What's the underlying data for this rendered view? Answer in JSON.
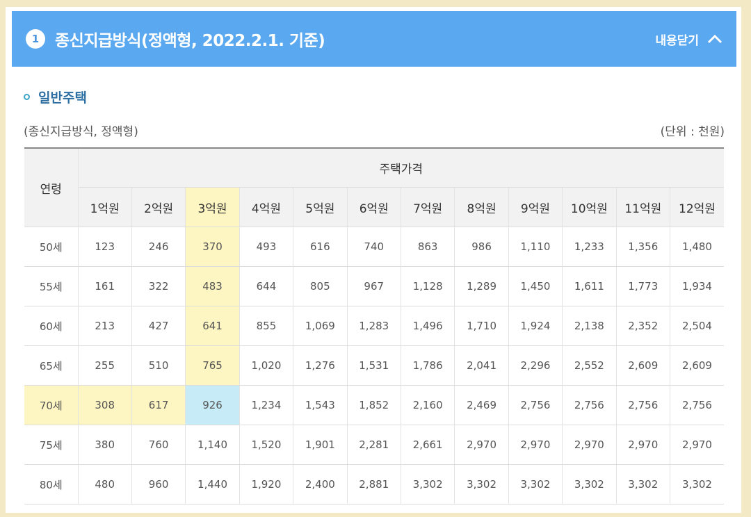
{
  "header": {
    "number": "1",
    "title": "종신지급방식(정액형, 2022.2.1. 기준)",
    "collapse_label": "내용닫기"
  },
  "section": {
    "title": "일반주택",
    "caption": "(종신지급방식, 정액형)",
    "unit": "(단위 : 천원)"
  },
  "table": {
    "age_header": "연령",
    "group_header": "주택가격",
    "price_headers": [
      "1억원",
      "2억원",
      "3억원",
      "4억원",
      "5억원",
      "6억원",
      "7억원",
      "8억원",
      "9억원",
      "10억원",
      "11억원",
      "12억원"
    ],
    "rows": [
      {
        "age": "50세",
        "values": [
          "123",
          "246",
          "370",
          "493",
          "616",
          "740",
          "863",
          "986",
          "1,110",
          "1,233",
          "1,356",
          "1,480"
        ]
      },
      {
        "age": "55세",
        "values": [
          "161",
          "322",
          "483",
          "644",
          "805",
          "967",
          "1,128",
          "1,289",
          "1,450",
          "1,611",
          "1,773",
          "1,934"
        ]
      },
      {
        "age": "60세",
        "values": [
          "213",
          "427",
          "641",
          "855",
          "1,069",
          "1,283",
          "1,496",
          "1,710",
          "1,924",
          "2,138",
          "2,352",
          "2,504"
        ]
      },
      {
        "age": "65세",
        "values": [
          "255",
          "510",
          "765",
          "1,020",
          "1,276",
          "1,531",
          "1,786",
          "2,041",
          "2,296",
          "2,552",
          "2,609",
          "2,609"
        ]
      },
      {
        "age": "70세",
        "values": [
          "308",
          "617",
          "926",
          "1,234",
          "1,543",
          "1,852",
          "2,160",
          "2,469",
          "2,756",
          "2,756",
          "2,756",
          "2,756"
        ]
      },
      {
        "age": "75세",
        "values": [
          "380",
          "760",
          "1,140",
          "1,520",
          "1,901",
          "2,281",
          "2,661",
          "2,970",
          "2,970",
          "2,970",
          "2,970",
          "2,970"
        ]
      },
      {
        "age": "80세",
        "values": [
          "480",
          "960",
          "1,440",
          "1,920",
          "2,400",
          "2,881",
          "3,302",
          "3,302",
          "3,302",
          "3,302",
          "3,302",
          "3,302"
        ]
      }
    ]
  },
  "colors": {
    "header_bg": "#5aa8f0",
    "highlight_yellow": "#fdf5c2",
    "highlight_blue": "#c7ecf7",
    "section_title": "#2d6fa3"
  }
}
